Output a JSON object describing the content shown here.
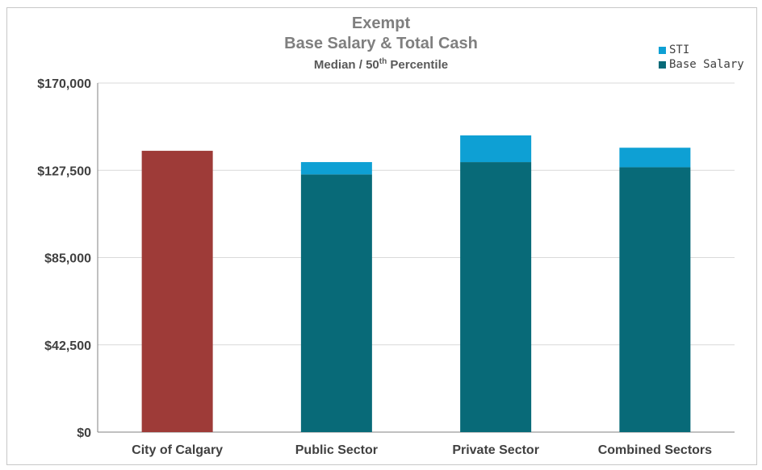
{
  "colors": {
    "sti": "#0ea0d4",
    "base_salary": "#086a78",
    "city": "#9e3b38",
    "grid": "#d9d9d9",
    "axis": "#808080"
  },
  "chart_data": {
    "type": "bar",
    "stacked": true,
    "title": "Exempt",
    "subtitle": "Base Salary & Total Cash",
    "subtitle2": "Median / 50",
    "subtitle2_sup": "th",
    "subtitle2_tail": " Percentile",
    "categories": [
      "City of Calgary",
      "Public Sector",
      "Private Sector",
      "Combined Sectors"
    ],
    "series": [
      {
        "name": "Base Salary",
        "values": [
          137000,
          125500,
          131500,
          129000
        ]
      },
      {
        "name": "STI",
        "values": [
          0,
          6000,
          13000,
          9500
        ]
      }
    ],
    "ylim": [
      0,
      170000
    ],
    "yticks": [
      0,
      42500,
      85000,
      127500,
      170000
    ],
    "ytick_labels": [
      "$0",
      "$42,500",
      "$85,000",
      "$127,500",
      "$170,000"
    ],
    "grid": true,
    "legend": "top-right",
    "legend_entries": [
      "STI",
      "Base Salary"
    ]
  }
}
